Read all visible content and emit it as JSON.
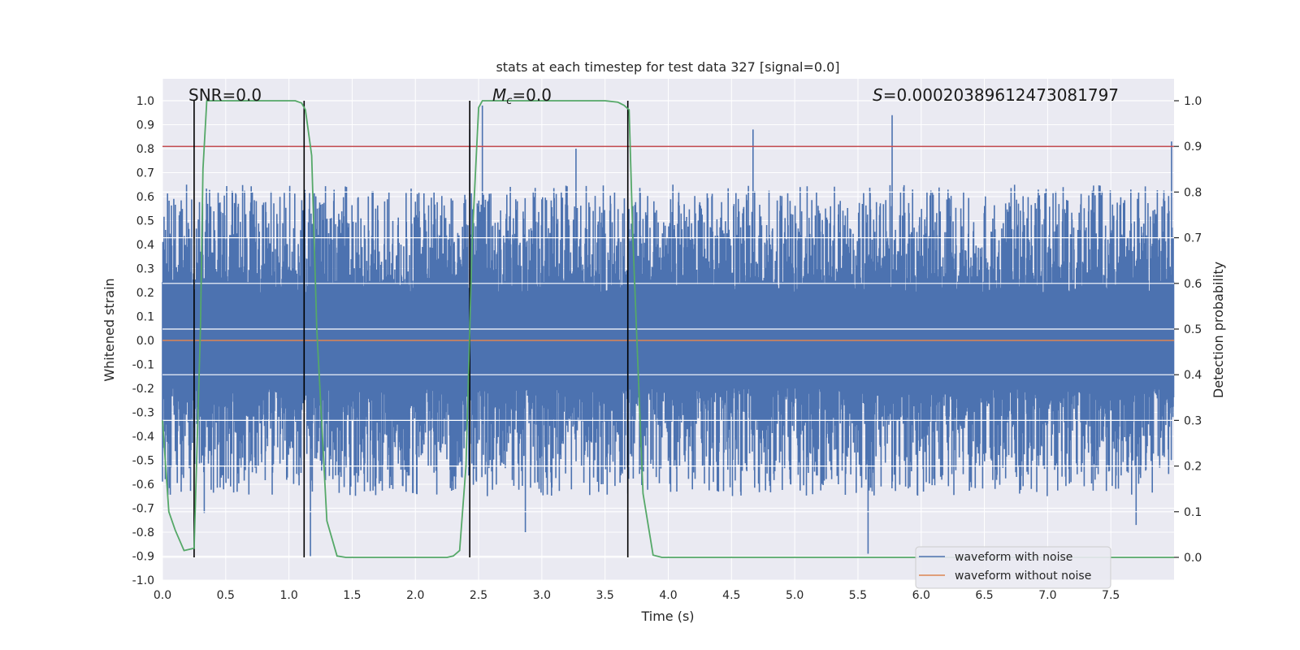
{
  "chart_data": {
    "type": "line",
    "title": "stats at each timestep for test data 327 [signal=0.0]",
    "xlabel": "Time (s)",
    "ylabel": "Whitened strain",
    "y2label": "Detection probability",
    "xlim": [
      0.0,
      8.0
    ],
    "ylim": [
      -1.0,
      1.0
    ],
    "y2lim": [
      -0.05,
      1.05
    ],
    "xticks": [
      "0.0",
      "0.5",
      "1.0",
      "1.5",
      "2.0",
      "2.5",
      "3.0",
      "3.5",
      "4.0",
      "4.5",
      "5.0",
      "5.5",
      "6.0",
      "6.5",
      "7.0",
      "7.5"
    ],
    "yticks": [
      "1.0",
      "0.9",
      "0.8",
      "0.7",
      "0.6",
      "0.5",
      "0.4",
      "0.3",
      "0.2",
      "0.1",
      "0.0",
      "-0.1",
      "-0.2",
      "-0.3",
      "-0.4",
      "-0.5",
      "-0.6",
      "-0.7",
      "-0.8",
      "-0.9",
      "-1.0"
    ],
    "y2ticks": [
      "1.0",
      "0.9",
      "0.8",
      "0.7",
      "0.6",
      "0.5",
      "0.4",
      "0.3",
      "0.2",
      "0.1",
      "0.0"
    ],
    "annotations": {
      "snr": "SNR=0.0",
      "mc_symbol": "M",
      "mc_sub": "c",
      "mc_value": "=0.0",
      "s_symbol": "S",
      "s_value": "=0.00020389612473081797"
    },
    "threshold": {
      "y2": 0.9,
      "color": "#c44e52"
    },
    "vertical_lines": [
      0.25,
      1.12,
      2.43,
      3.68
    ],
    "series": [
      {
        "name": "waveform with noise",
        "color": "#4c72b0",
        "kind": "noise",
        "duration": 8.0,
        "peaks": [
          [
            0.19,
            0.65
          ],
          [
            2.43,
            0.88
          ],
          [
            2.53,
            0.98
          ],
          [
            3.27,
            0.8
          ],
          [
            4.67,
            0.88
          ],
          [
            5.77,
            0.94
          ],
          [
            7.98,
            0.83
          ]
        ],
        "troughs": [
          [
            0.33,
            -0.72
          ],
          [
            1.17,
            -0.9
          ],
          [
            2.87,
            -0.8
          ],
          [
            5.58,
            -0.89
          ],
          [
            7.7,
            -0.77
          ]
        ]
      },
      {
        "name": "waveform without noise",
        "color": "#dd8452",
        "x": [
          0.0,
          8.0
        ],
        "y": [
          0.0,
          0.0
        ]
      },
      {
        "name": "detection probability",
        "color": "#55a868",
        "axis": "y2",
        "x": [
          0.0,
          0.05,
          0.1,
          0.17,
          0.25,
          0.3,
          0.32,
          0.35,
          0.5,
          0.8,
          1.0,
          1.05,
          1.1,
          1.13,
          1.18,
          1.22,
          1.3,
          1.38,
          1.45,
          1.6,
          2.0,
          2.25,
          2.3,
          2.35,
          2.4,
          2.45,
          2.5,
          2.53,
          2.55,
          2.6,
          3.0,
          3.5,
          3.6,
          3.65,
          3.69,
          3.72,
          3.8,
          3.88,
          3.95,
          4.2,
          8.0
        ],
        "y": [
          0.3,
          0.1,
          0.06,
          0.015,
          0.02,
          0.5,
          0.85,
          1.0,
          1.0,
          1.0,
          1.0,
          1.0,
          0.995,
          0.98,
          0.88,
          0.5,
          0.08,
          0.003,
          0.0,
          0.0,
          0.0,
          0.0,
          0.003,
          0.015,
          0.2,
          0.7,
          0.985,
          1.0,
          1.0,
          1.0,
          1.0,
          1.0,
          0.997,
          0.99,
          0.98,
          0.7,
          0.14,
          0.005,
          0.0,
          0.0,
          0.0
        ]
      }
    ],
    "legend": {
      "placement": "lower-right",
      "entries": [
        {
          "label": "waveform with noise",
          "color": "#4c72b0"
        },
        {
          "label": "waveform without noise",
          "color": "#dd8452"
        }
      ]
    },
    "colors": {
      "plot_background": "#eaeaf2",
      "grid": "#ffffff",
      "marker_line": "#000000"
    }
  }
}
